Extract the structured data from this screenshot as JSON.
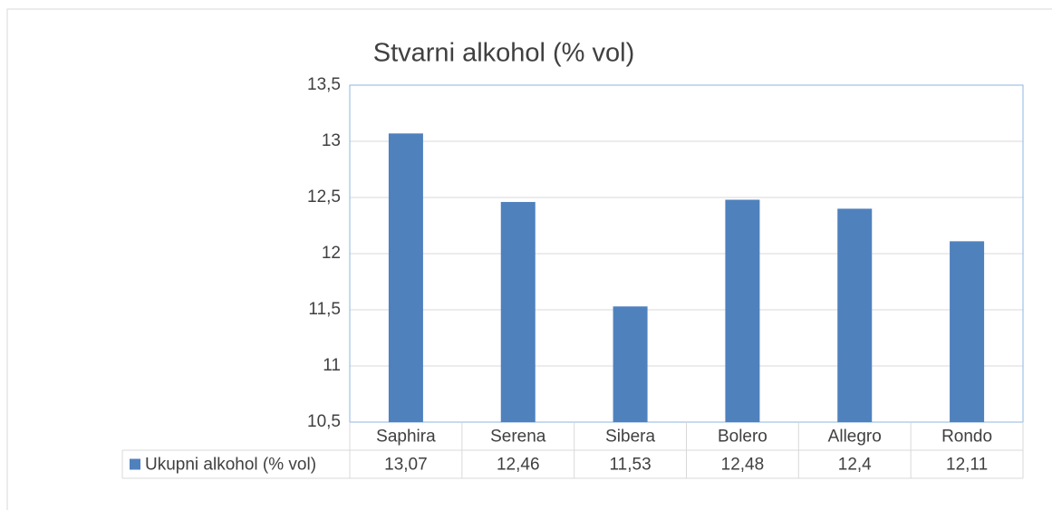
{
  "chart_data": {
    "type": "bar",
    "title": "Stvarni alkohol (% vol)",
    "categories": [
      "Saphira",
      "Serena",
      "Sibera",
      "Bolero",
      "Allegro",
      "Rondo"
    ],
    "series": [
      {
        "name": "Ukupni alkohol (% vol)",
        "color": "#4f81bd",
        "values": [
          13.07,
          12.46,
          11.53,
          12.48,
          12.4,
          12.11
        ],
        "value_labels": [
          "13,07",
          "12,46",
          "11,53",
          "12,48",
          "12,4",
          "12,11"
        ]
      }
    ],
    "ylim": [
      10.5,
      13.5
    ],
    "yticks": [
      {
        "value": 10.5,
        "label": "10,5"
      },
      11,
      {
        "value": 11.5,
        "label": "11,5"
      },
      12,
      {
        "value": 12.5,
        "label": "12,5"
      },
      13,
      {
        "value": 13.5,
        "label": "13,5"
      }
    ],
    "grid": true,
    "data_table": true
  }
}
